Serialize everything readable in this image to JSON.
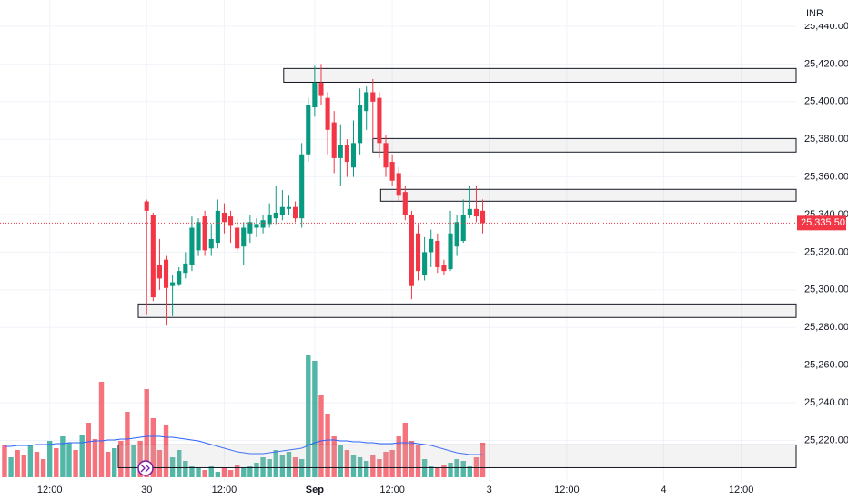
{
  "chart_data": {
    "type": "candlestick",
    "currency": "INR",
    "up_color": "#089981",
    "down_color": "#f23645",
    "ma_color": "#2962ff",
    "grid": true,
    "ylim": [
      25198,
      25454
    ],
    "yticks": [
      {
        "value": 25440,
        "label": "25,440.00"
      },
      {
        "value": 25420,
        "label": "25,420.00"
      },
      {
        "value": 25400,
        "label": "25,400.00"
      },
      {
        "value": 25380,
        "label": "25,380.00"
      },
      {
        "value": 25360,
        "label": "25,360.00"
      },
      {
        "value": 25340,
        "label": "25,340.00"
      },
      {
        "value": 25320,
        "label": "25,320.00"
      },
      {
        "value": 25300,
        "label": "25,300.00"
      },
      {
        "value": 25280,
        "label": "25,280.00"
      },
      {
        "value": 25260,
        "label": "25,260.00"
      },
      {
        "value": 25240,
        "label": "25,240.00"
      },
      {
        "value": 25220,
        "label": "25,220.00"
      }
    ],
    "xlim": [
      -0.7,
      122.5
    ],
    "xticks": [
      {
        "value": 7,
        "label": "12:00"
      },
      {
        "value": 22,
        "label": "30"
      },
      {
        "value": 34,
        "label": "12:00"
      },
      {
        "value": 48,
        "label": "Sep"
      },
      {
        "value": 60,
        "label": "12:00"
      },
      {
        "value": 75,
        "label": "3"
      },
      {
        "value": 87,
        "label": "12:00"
      },
      {
        "value": 102,
        "label": "4"
      },
      {
        "value": 114,
        "label": "12:00"
      }
    ],
    "x": [
      0,
      1,
      2,
      3,
      4,
      5,
      6,
      7,
      8,
      9,
      10,
      11,
      12,
      13,
      14,
      15,
      16,
      17,
      18,
      19,
      20,
      21,
      22,
      23,
      24,
      25,
      26,
      27,
      28,
      29,
      30,
      31,
      32,
      33,
      34,
      35,
      36,
      37,
      38,
      39,
      40,
      41,
      42,
      43,
      44,
      45,
      46,
      47,
      48,
      49,
      50,
      51,
      52,
      53,
      54,
      55,
      56,
      57,
      58,
      59,
      60,
      61,
      62,
      63,
      64,
      65,
      66,
      67,
      68,
      69,
      70,
      71,
      72,
      73,
      74
    ],
    "open": [
      null,
      null,
      null,
      null,
      null,
      null,
      null,
      null,
      null,
      null,
      null,
      null,
      null,
      null,
      null,
      null,
      null,
      null,
      null,
      null,
      null,
      null,
      25347,
      25340,
      25313,
      25316,
      25302,
      25303,
      25309,
      25313,
      25321,
      25339,
      25322,
      25325,
      25341,
      25339,
      25333,
      25323,
      25330,
      25333,
      25333,
      25335,
      25338,
      25340,
      25343,
      25344,
      25338,
      25372,
      25397,
      25410,
      25402,
      25389,
      25370,
      25377,
      25365,
      25378,
      25395,
      25405,
      25402,
      25378,
      25368,
      25362,
      25352,
      25340,
      25330,
      25308,
      25320,
      25326,
      25313,
      25311,
      25323,
      25326,
      25340,
      25343,
      25342
    ],
    "high": [
      null,
      null,
      null,
      null,
      null,
      null,
      null,
      null,
      null,
      null,
      null,
      null,
      null,
      null,
      null,
      null,
      null,
      null,
      null,
      null,
      null,
      null,
      25348,
      25341,
      25327,
      25318,
      25308,
      25312,
      25320,
      25339,
      25338,
      25342,
      25335,
      25348,
      25346,
      25342,
      25338,
      25336,
      25340,
      25338,
      25340,
      25346,
      25355,
      25353,
      25350,
      25347,
      25378,
      25402,
      25419,
      25420,
      25405,
      25395,
      25388,
      25380,
      25390,
      25407,
      25408,
      25412,
      25405,
      25382,
      25372,
      25365,
      25355,
      25342,
      25335,
      25328,
      25332,
      25330,
      25316,
      25342,
      25340,
      25348,
      25355,
      25355,
      25348
    ],
    "low": [
      null,
      null,
      null,
      null,
      null,
      null,
      null,
      null,
      null,
      null,
      null,
      null,
      null,
      null,
      null,
      null,
      null,
      null,
      null,
      null,
      null,
      null,
      25287,
      25294,
      25300,
      25281,
      25286,
      25302,
      25306,
      25310,
      25318,
      25318,
      25318,
      25322,
      25330,
      25325,
      25320,
      25313,
      25325,
      25328,
      25330,
      25333,
      25335,
      25337,
      25340,
      25336,
      25333,
      25368,
      25392,
      25398,
      25372,
      25362,
      25355,
      25360,
      25360,
      25372,
      25385,
      25380,
      25370,
      25360,
      25355,
      25347,
      25337,
      25295,
      25305,
      25305,
      25312,
      25309,
      25308,
      25310,
      25318,
      25325,
      25338,
      25336,
      25330
    ],
    "close": [
      null,
      null,
      null,
      null,
      null,
      null,
      null,
      null,
      null,
      null,
      null,
      null,
      null,
      null,
      null,
      null,
      null,
      null,
      null,
      null,
      null,
      null,
      25342,
      25296,
      25306,
      25301,
      25304,
      25310,
      25314,
      25333,
      25336,
      25321,
      25327,
      25342,
      25336,
      25334,
      25322,
      25333,
      25336,
      25335,
      25337,
      25340,
      25341,
      25344,
      25344,
      25338,
      25372,
      25398,
      25410,
      25403,
      25385,
      25370,
      25377,
      25368,
      25378,
      25398,
      25405,
      25400,
      25378,
      25365,
      25358,
      25350,
      25340,
      25302,
      25310,
      25320,
      25327,
      25312,
      25310,
      25330,
      25336,
      25340,
      25343,
      25339,
      25335.5
    ],
    "vlim": [
      0,
      140
    ],
    "volume": [
      36,
      22,
      30,
      25,
      35,
      28,
      20,
      40,
      32,
      45,
      38,
      30,
      46,
      60,
      42,
      105,
      28,
      32,
      40,
      72,
      35,
      40,
      97,
      65,
      30,
      58,
      22,
      30,
      18,
      12,
      10,
      8,
      12,
      6,
      10,
      8,
      14,
      10,
      12,
      16,
      22,
      20,
      30,
      25,
      28,
      22,
      20,
      135,
      128,
      90,
      70,
      45,
      35,
      30,
      25,
      22,
      18,
      24,
      20,
      28,
      30,
      45,
      60,
      40,
      35,
      20,
      12,
      10,
      14,
      16,
      20,
      18,
      12,
      22,
      38
    ],
    "volume_up": [
      false,
      true,
      false,
      false,
      true,
      false,
      false,
      true,
      false,
      true,
      true,
      false,
      true,
      false,
      false,
      false,
      false,
      true,
      false,
      false,
      true,
      false,
      false,
      false,
      false,
      false,
      true,
      true,
      true,
      true,
      true,
      false,
      true,
      true,
      false,
      false,
      false,
      true,
      true,
      true,
      true,
      true,
      true,
      true,
      true,
      false,
      true,
      true,
      true,
      false,
      false,
      false,
      true,
      false,
      true,
      true,
      true,
      false,
      false,
      false,
      false,
      false,
      false,
      false,
      false,
      true,
      true,
      false,
      false,
      true,
      true,
      true,
      true,
      false,
      false
    ],
    "volume_ma": [
      34,
      34,
      35,
      35,
      35,
      36,
      36,
      36,
      37,
      37,
      38,
      38,
      38,
      39,
      40,
      40,
      41,
      41,
      42,
      42,
      43,
      44,
      45,
      45,
      45,
      44,
      44,
      43,
      42,
      41,
      40,
      38,
      36,
      34,
      32,
      30,
      28,
      27,
      26,
      26,
      26,
      27,
      28,
      29,
      30,
      31,
      32,
      35,
      38,
      40,
      41,
      41,
      40,
      40,
      39,
      39,
      38,
      38,
      37,
      37,
      37,
      38,
      38,
      38,
      37,
      36,
      35,
      33,
      31,
      29,
      27,
      26,
      25,
      25,
      25
    ],
    "zones": [
      {
        "start": 43.2,
        "top": 25417.6,
        "bottom": 25410.3
      },
      {
        "start": 57.0,
        "top": 25380.4,
        "bottom": 25373.2
      },
      {
        "start": 58.2,
        "top": 25353.4,
        "bottom": 25347.1
      },
      {
        "start": 20.7,
        "top": 25292.5,
        "bottom": 25285.3
      },
      {
        "start": 17.6,
        "top": 25217.6,
        "bottom": 25205.5
      }
    ],
    "last_price": {
      "value": 25335.5,
      "label": "25,335.50"
    }
  }
}
